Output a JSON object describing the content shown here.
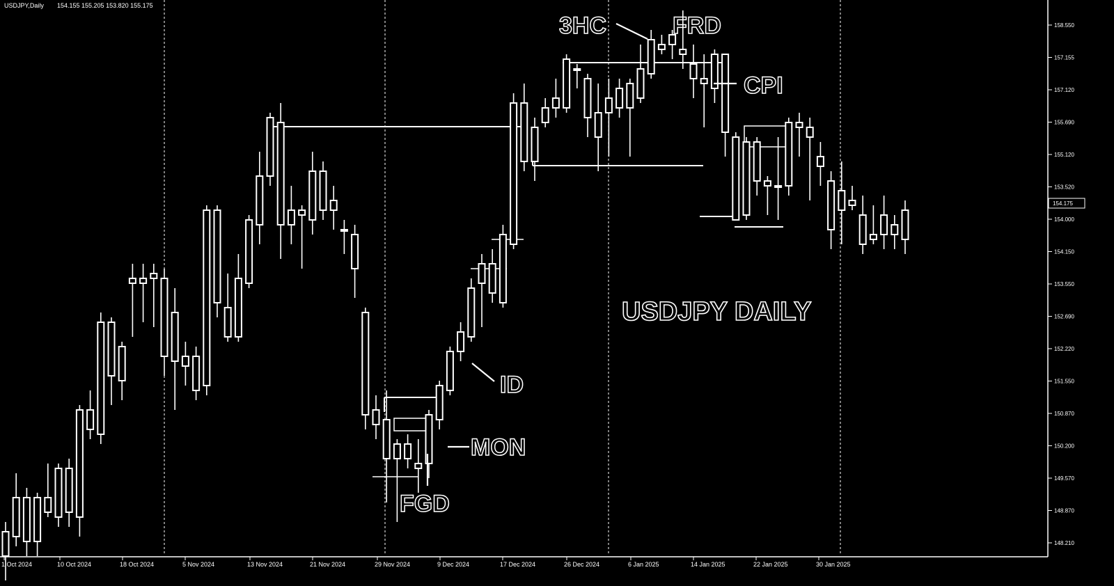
{
  "header": {
    "symbol": "USDJPY,Daily",
    "ohlc": "154.155 155.205 153.820 155.175"
  },
  "chart_data": {
    "type": "candlestick",
    "title": "USDJPY DAILY",
    "price_scale": {
      "ticks": [
        "158.550",
        "157.155",
        "157.120",
        "155.690",
        "155.120",
        "153.520",
        "154.000",
        "154.150",
        "153.550",
        "152.690",
        "152.220",
        "151.550",
        "150.870",
        "150.200",
        "149.570",
        "148.870",
        "148.210"
      ],
      "current_price_label": "154.175"
    },
    "x_ticks": [
      "1 Oct 2024",
      "10 Oct 2024",
      "18 Oct 2024",
      "5 Nov 2024",
      "13 Nov 2024",
      "21 Nov 2024",
      "29 Nov 2024",
      "9 Dec 2024",
      "17 Dec 2024",
      "26 Dec 2024",
      "6 Jan 2025",
      "14 Jan 2025",
      "22 Jan 2025",
      "30 Jan 2025"
    ],
    "annotations": [
      "3HC",
      "FRD",
      "CPI",
      "ID",
      "MON",
      "FGD"
    ],
    "candles": [
      {
        "o": 147.6,
        "h": 148.3,
        "l": 147.1,
        "c": 148.1
      },
      {
        "o": 148.0,
        "h": 149.3,
        "l": 147.8,
        "c": 148.8
      },
      {
        "o": 148.8,
        "h": 149.0,
        "l": 147.6,
        "c": 147.9
      },
      {
        "o": 147.9,
        "h": 148.9,
        "l": 147.6,
        "c": 148.8
      },
      {
        "o": 148.8,
        "h": 149.5,
        "l": 148.4,
        "c": 148.5
      },
      {
        "o": 148.4,
        "h": 149.5,
        "l": 148.2,
        "c": 149.4
      },
      {
        "o": 149.4,
        "h": 149.6,
        "l": 148.2,
        "c": 148.5
      },
      {
        "o": 148.4,
        "h": 150.7,
        "l": 148.0,
        "c": 150.6
      },
      {
        "o": 150.6,
        "h": 151.0,
        "l": 150.0,
        "c": 150.2
      },
      {
        "o": 150.1,
        "h": 152.6,
        "l": 149.9,
        "c": 152.4
      },
      {
        "o": 152.4,
        "h": 152.5,
        "l": 150.7,
        "c": 151.3
      },
      {
        "o": 151.2,
        "h": 152.0,
        "l": 150.8,
        "c": 151.9
      },
      {
        "o": 153.3,
        "h": 153.6,
        "l": 152.1,
        "c": 153.2
      },
      {
        "o": 153.2,
        "h": 153.6,
        "l": 152.4,
        "c": 153.3
      },
      {
        "o": 153.3,
        "h": 153.6,
        "l": 152.3,
        "c": 153.4
      },
      {
        "o": 153.3,
        "h": 153.5,
        "l": 151.3,
        "c": 151.7
      },
      {
        "o": 152.6,
        "h": 153.1,
        "l": 150.6,
        "c": 151.6
      },
      {
        "o": 151.5,
        "h": 152.0,
        "l": 151.1,
        "c": 151.7
      },
      {
        "o": 151.7,
        "h": 151.9,
        "l": 150.8,
        "c": 151.0
      },
      {
        "o": 151.1,
        "h": 154.8,
        "l": 150.9,
        "c": 154.7
      },
      {
        "o": 154.7,
        "h": 154.8,
        "l": 152.5,
        "c": 152.8
      },
      {
        "o": 152.7,
        "h": 153.4,
        "l": 152.0,
        "c": 152.1
      },
      {
        "o": 152.1,
        "h": 153.8,
        "l": 152.0,
        "c": 153.3
      },
      {
        "o": 153.2,
        "h": 154.6,
        "l": 153.1,
        "c": 154.5
      },
      {
        "o": 154.4,
        "h": 155.9,
        "l": 154.0,
        "c": 155.4
      },
      {
        "o": 155.4,
        "h": 156.7,
        "l": 155.2,
        "c": 156.6
      },
      {
        "o": 156.5,
        "h": 156.9,
        "l": 153.7,
        "c": 154.4
      },
      {
        "o": 154.4,
        "h": 155.2,
        "l": 154.0,
        "c": 154.7
      },
      {
        "o": 154.7,
        "h": 154.8,
        "l": 153.5,
        "c": 154.6
      },
      {
        "o": 154.5,
        "h": 155.9,
        "l": 154.2,
        "c": 155.5
      },
      {
        "o": 155.5,
        "h": 155.7,
        "l": 154.5,
        "c": 154.7
      },
      {
        "o": 154.7,
        "h": 155.2,
        "l": 154.3,
        "c": 154.9
      },
      {
        "o": 154.3,
        "h": 154.5,
        "l": 153.8,
        "c": 154.3
      },
      {
        "o": 154.2,
        "h": 154.4,
        "l": 152.9,
        "c": 153.5
      },
      {
        "o": 152.6,
        "h": 152.7,
        "l": 150.2,
        "c": 150.5
      },
      {
        "o": 150.6,
        "h": 150.9,
        "l": 150.0,
        "c": 150.3
      },
      {
        "o": 150.4,
        "h": 151.0,
        "l": 148.7,
        "c": 149.6
      },
      {
        "o": 149.6,
        "h": 150.0,
        "l": 148.3,
        "c": 149.9
      },
      {
        "o": 149.9,
        "h": 150.1,
        "l": 149.4,
        "c": 149.6
      },
      {
        "o": 149.5,
        "h": 150.0,
        "l": 148.9,
        "c": 149.4
      },
      {
        "o": 149.5,
        "h": 150.6,
        "l": 149.2,
        "c": 150.5
      },
      {
        "o": 150.4,
        "h": 151.2,
        "l": 150.2,
        "c": 151.1
      },
      {
        "o": 151.0,
        "h": 151.9,
        "l": 150.9,
        "c": 151.8
      },
      {
        "o": 151.8,
        "h": 152.4,
        "l": 151.6,
        "c": 152.2
      },
      {
        "o": 152.1,
        "h": 153.3,
        "l": 152.0,
        "c": 153.1
      },
      {
        "o": 153.2,
        "h": 153.8,
        "l": 152.3,
        "c": 153.6
      },
      {
        "o": 153.6,
        "h": 153.9,
        "l": 152.8,
        "c": 153.0
      },
      {
        "o": 152.8,
        "h": 154.4,
        "l": 152.7,
        "c": 154.2
      },
      {
        "o": 154.0,
        "h": 157.1,
        "l": 153.9,
        "c": 156.9
      },
      {
        "o": 156.9,
        "h": 157.3,
        "l": 155.5,
        "c": 155.7
      },
      {
        "o": 155.7,
        "h": 156.6,
        "l": 155.3,
        "c": 156.4
      },
      {
        "o": 156.5,
        "h": 157.0,
        "l": 156.4,
        "c": 156.8
      },
      {
        "o": 156.8,
        "h": 157.4,
        "l": 156.6,
        "c": 157.0
      },
      {
        "o": 156.8,
        "h": 157.9,
        "l": 156.7,
        "c": 157.8
      },
      {
        "o": 157.6,
        "h": 157.7,
        "l": 157.2,
        "c": 157.6
      },
      {
        "o": 157.4,
        "h": 157.5,
        "l": 156.2,
        "c": 156.6
      },
      {
        "o": 156.7,
        "h": 157.3,
        "l": 155.5,
        "c": 156.2
      },
      {
        "o": 156.7,
        "h": 157.4,
        "l": 155.8,
        "c": 157.0
      },
      {
        "o": 157.2,
        "h": 157.4,
        "l": 156.6,
        "c": 156.8
      },
      {
        "o": 156.8,
        "h": 157.4,
        "l": 155.8,
        "c": 157.3
      },
      {
        "o": 157.0,
        "h": 158.1,
        "l": 156.9,
        "c": 157.6
      },
      {
        "o": 157.5,
        "h": 158.4,
        "l": 157.4,
        "c": 158.2
      },
      {
        "o": 158.1,
        "h": 158.3,
        "l": 157.9,
        "c": 158.0
      },
      {
        "o": 158.1,
        "h": 158.4,
        "l": 157.8,
        "c": 158.3
      },
      {
        "o": 158.0,
        "h": 158.8,
        "l": 157.6,
        "c": 157.9
      },
      {
        "o": 157.7,
        "h": 158.1,
        "l": 157.0,
        "c": 157.4
      },
      {
        "o": 157.3,
        "h": 157.9,
        "l": 156.4,
        "c": 157.4
      },
      {
        "o": 157.2,
        "h": 158.0,
        "l": 156.9,
        "c": 157.9
      },
      {
        "o": 157.9,
        "h": 157.9,
        "l": 155.8,
        "c": 156.3
      },
      {
        "o": 156.2,
        "h": 156.3,
        "l": 154.6,
        "c": 154.5
      },
      {
        "o": 154.6,
        "h": 156.2,
        "l": 154.5,
        "c": 156.1
      },
      {
        "o": 156.1,
        "h": 156.2,
        "l": 155.0,
        "c": 155.3
      },
      {
        "o": 155.3,
        "h": 155.4,
        "l": 154.6,
        "c": 155.2
      },
      {
        "o": 155.2,
        "h": 156.2,
        "l": 154.5,
        "c": 155.2
      },
      {
        "o": 155.2,
        "h": 156.6,
        "l": 155.0,
        "c": 156.5
      },
      {
        "o": 156.4,
        "h": 156.7,
        "l": 155.8,
        "c": 156.5
      },
      {
        "o": 156.4,
        "h": 156.6,
        "l": 154.9,
        "c": 156.2
      },
      {
        "o": 155.8,
        "h": 156.1,
        "l": 155.2,
        "c": 155.6
      },
      {
        "o": 154.3,
        "h": 155.5,
        "l": 153.9,
        "c": 155.3
      },
      {
        "o": 155.1,
        "h": 155.7,
        "l": 154.0,
        "c": 154.7
      },
      {
        "o": 154.8,
        "h": 155.2,
        "l": 154.7,
        "c": 154.9
      },
      {
        "o": 154.6,
        "h": 155.0,
        "l": 153.8,
        "c": 154.0
      },
      {
        "o": 154.1,
        "h": 154.8,
        "l": 154.0,
        "c": 154.2
      },
      {
        "o": 154.2,
        "h": 155.0,
        "l": 153.9,
        "c": 154.6
      },
      {
        "o": 154.4,
        "h": 154.6,
        "l": 153.9,
        "c": 154.2
      },
      {
        "o": 154.1,
        "h": 154.9,
        "l": 153.8,
        "c": 154.7
      }
    ]
  },
  "colors": {
    "background": "#000000",
    "foreground": "#ffffff"
  }
}
